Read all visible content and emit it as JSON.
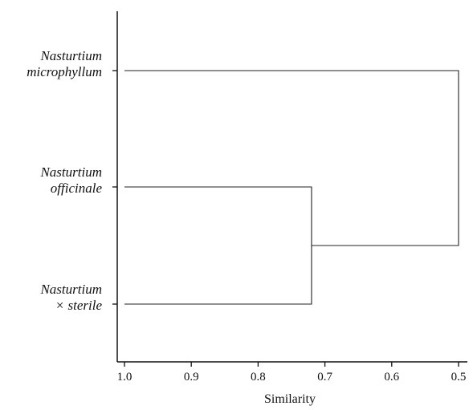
{
  "chart_data": {
    "type": "dendrogram",
    "xlabel": "Similarity",
    "xlim": [
      1.0,
      0.5
    ],
    "xticks": [
      "1.0",
      "0.9",
      "0.8",
      "0.7",
      "0.6",
      "0.5"
    ],
    "leaves": [
      {
        "id": "microphyllum",
        "line1": "Nasturtium",
        "line2": "microphyllum"
      },
      {
        "id": "officinale",
        "line1": "Nasturtium",
        "line2": "officinale"
      },
      {
        "id": "sterile",
        "line1": "Nasturtium",
        "line2": "× sterile"
      }
    ],
    "merges": [
      {
        "members": [
          "officinale",
          "sterile"
        ],
        "similarity": 0.72
      },
      {
        "members": [
          "microphyllum",
          "officinale+sterile"
        ],
        "similarity": 0.5
      }
    ]
  }
}
